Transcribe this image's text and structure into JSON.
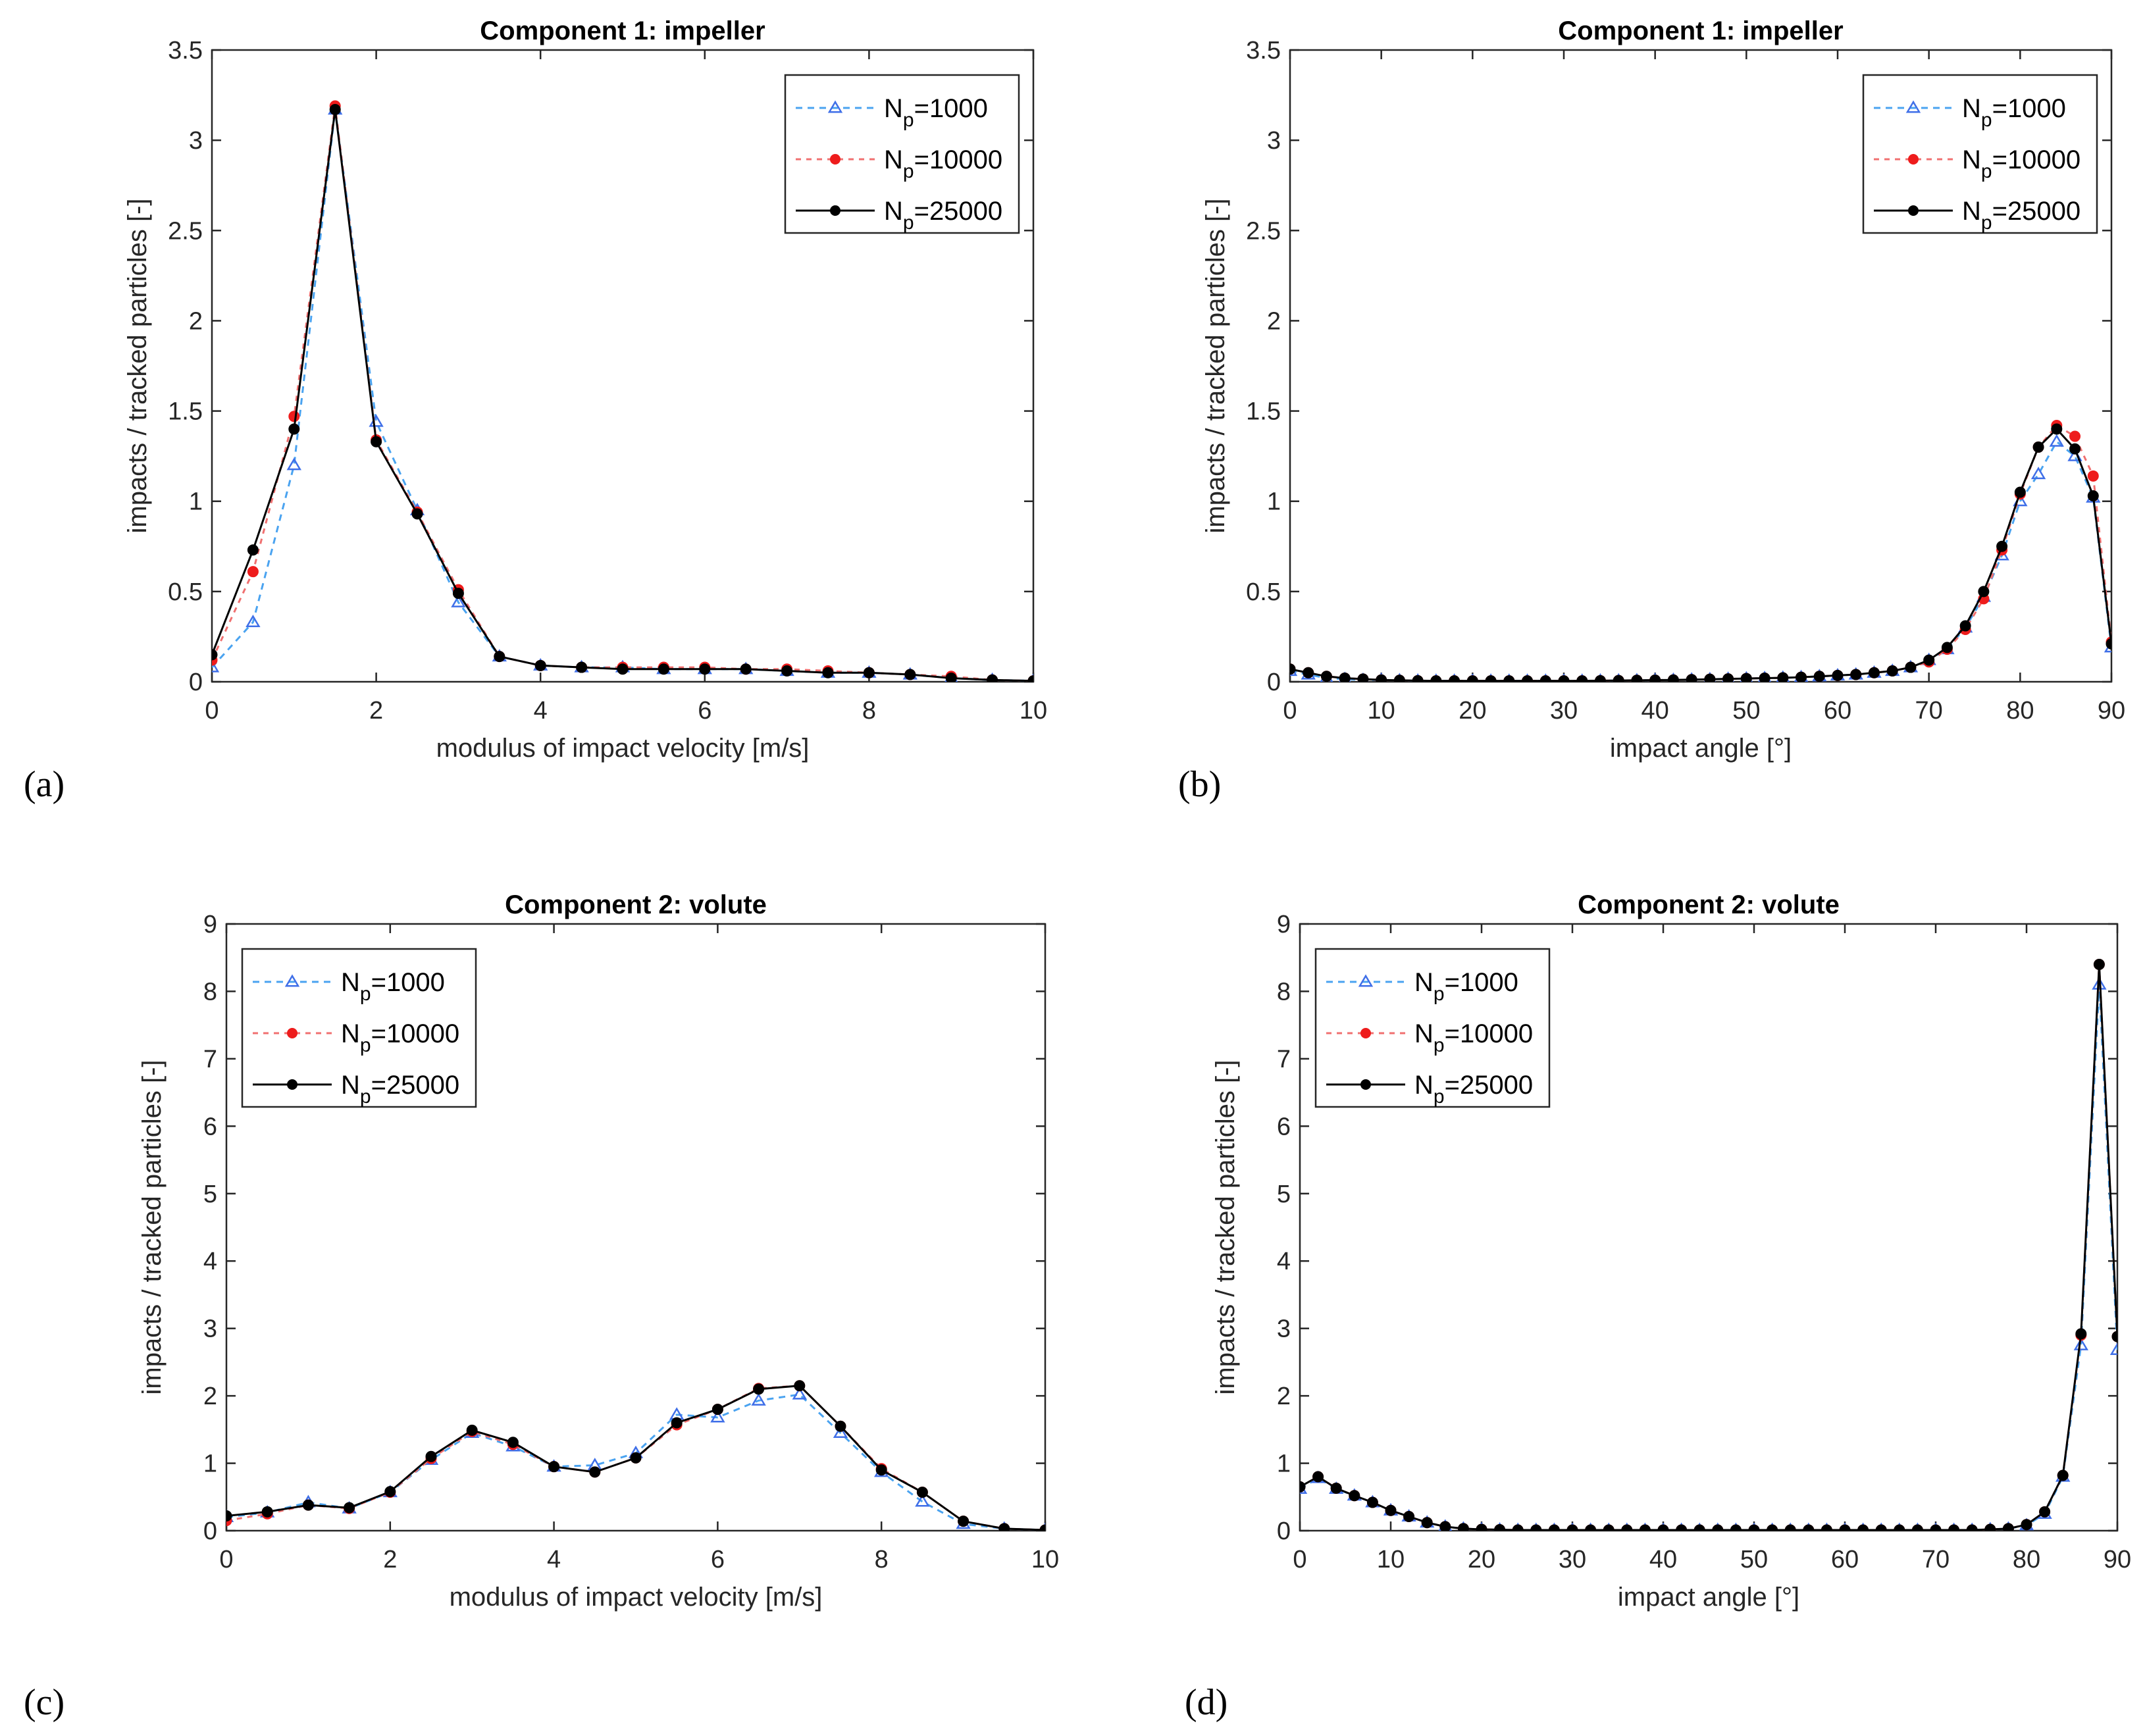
{
  "colors": {
    "np1000": "#3f6fe8",
    "np10000": "#ee1c1c",
    "np25000": "#000000",
    "np1000_line": "#4aa3f0",
    "np10000_line": "#f07070"
  },
  "legend": [
    {
      "n": "N",
      "sub": "p",
      "rest": "=1000"
    },
    {
      "n": "N",
      "sub": "p",
      "rest": "=10000"
    },
    {
      "n": "N",
      "sub": "p",
      "rest": "=25000"
    }
  ],
  "chart_data": [
    {
      "label": "(a)",
      "type": "line",
      "title": "Component 1: impeller",
      "xlabel": "modulus of impact velocity [m/s]",
      "ylabel": "impacts / tracked particles [-]",
      "xlim": [
        0,
        10
      ],
      "ylim": [
        0,
        3.5
      ],
      "xticks": [
        0,
        2,
        4,
        6,
        8,
        10
      ],
      "yticks": [
        0,
        0.5,
        1,
        1.5,
        2,
        2.5,
        3,
        3.5
      ],
      "legend_position": "top-right",
      "x": [
        0,
        0.5,
        1,
        1.5,
        2,
        2.5,
        3,
        3.5,
        4,
        4.5,
        5,
        5.5,
        6,
        6.5,
        7,
        7.5,
        8,
        8.5,
        9,
        9.5,
        10
      ],
      "series": [
        {
          "name": "Np=1000",
          "values": [
            0.08,
            0.33,
            1.2,
            3.17,
            1.44,
            0.95,
            0.44,
            0.14,
            0.09,
            0.08,
            0.08,
            0.07,
            0.07,
            0.07,
            0.06,
            0.05,
            0.05,
            0.04,
            0.02,
            0.01,
            0.005
          ]
        },
        {
          "name": "Np=10000",
          "values": [
            0.12,
            0.61,
            1.47,
            3.19,
            1.34,
            0.94,
            0.51,
            0.14,
            0.09,
            0.08,
            0.08,
            0.08,
            0.08,
            0.07,
            0.07,
            0.06,
            0.05,
            0.04,
            0.03,
            0.01,
            0.005
          ]
        },
        {
          "name": "Np=25000",
          "values": [
            0.15,
            0.73,
            1.4,
            3.17,
            1.33,
            0.93,
            0.49,
            0.14,
            0.09,
            0.08,
            0.07,
            0.07,
            0.07,
            0.07,
            0.06,
            0.05,
            0.05,
            0.04,
            0.02,
            0.01,
            0.005
          ]
        }
      ]
    },
    {
      "label": "(b)",
      "type": "line",
      "title": "Component 1: impeller",
      "xlabel": "impact angle [°]",
      "ylabel": "impacts / tracked particles [-]",
      "xlim": [
        0,
        90
      ],
      "ylim": [
        0,
        3.5
      ],
      "xticks": [
        0,
        10,
        20,
        30,
        40,
        50,
        60,
        70,
        80,
        90
      ],
      "yticks": [
        0,
        0.5,
        1,
        1.5,
        2,
        2.5,
        3,
        3.5
      ],
      "legend_position": "top-right",
      "x": [
        0,
        2,
        4,
        6,
        8,
        10,
        12,
        14,
        16,
        18,
        20,
        22,
        24,
        26,
        28,
        30,
        32,
        34,
        36,
        38,
        40,
        42,
        44,
        46,
        48,
        50,
        52,
        54,
        56,
        58,
        60,
        62,
        64,
        66,
        68,
        70,
        72,
        74,
        76,
        78,
        80,
        82,
        84,
        86,
        88,
        90
      ],
      "series": [
        {
          "name": "Np=1000",
          "values": [
            0.06,
            0.04,
            0.02,
            0.015,
            0.01,
            0.01,
            0.008,
            0.006,
            0.005,
            0.005,
            0.005,
            0.005,
            0.005,
            0.005,
            0.005,
            0.005,
            0.005,
            0.006,
            0.007,
            0.008,
            0.009,
            0.01,
            0.012,
            0.014,
            0.016,
            0.018,
            0.02,
            0.022,
            0.025,
            0.03,
            0.035,
            0.04,
            0.05,
            0.06,
            0.08,
            0.12,
            0.18,
            0.3,
            0.47,
            0.7,
            1.0,
            1.15,
            1.33,
            1.25,
            1.02,
            0.19
          ]
        },
        {
          "name": "Np=10000",
          "values": [
            0.07,
            0.05,
            0.03,
            0.02,
            0.015,
            0.01,
            0.008,
            0.006,
            0.005,
            0.005,
            0.005,
            0.005,
            0.005,
            0.005,
            0.005,
            0.005,
            0.005,
            0.006,
            0.007,
            0.008,
            0.009,
            0.01,
            0.012,
            0.014,
            0.016,
            0.018,
            0.02,
            0.022,
            0.025,
            0.03,
            0.035,
            0.04,
            0.05,
            0.06,
            0.08,
            0.11,
            0.18,
            0.29,
            0.46,
            0.73,
            1.04,
            1.3,
            1.42,
            1.36,
            1.14,
            0.22
          ]
        },
        {
          "name": "Np=25000",
          "values": [
            0.07,
            0.05,
            0.03,
            0.02,
            0.015,
            0.01,
            0.008,
            0.006,
            0.005,
            0.005,
            0.005,
            0.005,
            0.005,
            0.005,
            0.005,
            0.005,
            0.005,
            0.006,
            0.007,
            0.008,
            0.009,
            0.01,
            0.012,
            0.014,
            0.016,
            0.018,
            0.02,
            0.022,
            0.025,
            0.03,
            0.035,
            0.04,
            0.05,
            0.06,
            0.08,
            0.12,
            0.19,
            0.31,
            0.5,
            0.75,
            1.05,
            1.3,
            1.4,
            1.29,
            1.03,
            0.21
          ]
        }
      ]
    },
    {
      "label": "(c)",
      "type": "line",
      "title": "Component 2: volute",
      "xlabel": "modulus of impact velocity [m/s]",
      "ylabel": "impacts / tracked particles [-]",
      "xlim": [
        0,
        10
      ],
      "ylim": [
        0,
        9
      ],
      "xticks": [
        0,
        2,
        4,
        6,
        8,
        10
      ],
      "yticks": [
        0,
        1,
        2,
        3,
        4,
        5,
        6,
        7,
        8,
        9
      ],
      "legend_position": "top-left",
      "x": [
        0,
        0.5,
        1,
        1.5,
        2,
        2.5,
        3,
        3.5,
        4,
        4.5,
        5,
        5.5,
        6,
        6.5,
        7,
        7.5,
        8,
        8.5,
        9,
        9.5,
        10
      ],
      "series": [
        {
          "name": "Np=1000",
          "values": [
            0.2,
            0.27,
            0.42,
            0.33,
            0.57,
            1.05,
            1.45,
            1.25,
            0.95,
            0.97,
            1.15,
            1.72,
            1.68,
            1.93,
            2.02,
            1.45,
            0.87,
            0.43,
            0.1,
            0.03,
            0.01
          ]
        },
        {
          "name": "Np=10000",
          "values": [
            0.15,
            0.25,
            0.38,
            0.33,
            0.57,
            1.07,
            1.47,
            1.28,
            0.95,
            0.87,
            1.08,
            1.57,
            1.8,
            2.11,
            2.15,
            1.55,
            0.92,
            0.57,
            0.14,
            0.03,
            0.01
          ]
        },
        {
          "name": "Np=25000",
          "values": [
            0.22,
            0.28,
            0.38,
            0.34,
            0.58,
            1.1,
            1.49,
            1.31,
            0.95,
            0.87,
            1.08,
            1.6,
            1.8,
            2.1,
            2.15,
            1.55,
            0.9,
            0.57,
            0.14,
            0.03,
            0.01
          ]
        }
      ]
    },
    {
      "label": "(d)",
      "type": "line",
      "title": "Component 2: volute",
      "xlabel": "impact angle [°]",
      "ylabel": "impacts / tracked particles [-]",
      "xlim": [
        0,
        90
      ],
      "ylim": [
        0,
        9
      ],
      "xticks": [
        0,
        10,
        20,
        30,
        40,
        50,
        60,
        70,
        80,
        90
      ],
      "yticks": [
        0,
        1,
        2,
        3,
        4,
        5,
        6,
        7,
        8,
        9
      ],
      "legend_position": "top-left",
      "x": [
        0,
        2,
        4,
        6,
        8,
        10,
        12,
        14,
        16,
        18,
        20,
        22,
        24,
        26,
        28,
        30,
        32,
        34,
        36,
        38,
        40,
        42,
        44,
        46,
        48,
        50,
        52,
        54,
        56,
        58,
        60,
        62,
        64,
        66,
        68,
        70,
        72,
        74,
        76,
        78,
        80,
        82,
        84,
        86,
        88,
        90
      ],
      "series": [
        {
          "name": "Np=1000",
          "values": [
            0.62,
            0.78,
            0.62,
            0.52,
            0.42,
            0.3,
            0.21,
            0.12,
            0.06,
            0.03,
            0.02,
            0.015,
            0.01,
            0.01,
            0.01,
            0.01,
            0.01,
            0.01,
            0.01,
            0.01,
            0.01,
            0.01,
            0.01,
            0.01,
            0.01,
            0.01,
            0.01,
            0.01,
            0.01,
            0.01,
            0.01,
            0.01,
            0.01,
            0.01,
            0.01,
            0.01,
            0.01,
            0.01,
            0.02,
            0.03,
            0.08,
            0.25,
            0.8,
            2.75,
            8.1,
            2.68
          ]
        },
        {
          "name": "Np=10000",
          "values": [
            0.65,
            0.8,
            0.63,
            0.52,
            0.42,
            0.3,
            0.21,
            0.12,
            0.06,
            0.03,
            0.02,
            0.015,
            0.01,
            0.01,
            0.01,
            0.01,
            0.01,
            0.01,
            0.01,
            0.01,
            0.01,
            0.01,
            0.01,
            0.01,
            0.01,
            0.01,
            0.01,
            0.01,
            0.01,
            0.01,
            0.01,
            0.01,
            0.01,
            0.01,
            0.01,
            0.01,
            0.01,
            0.01,
            0.02,
            0.03,
            0.09,
            0.28,
            0.82,
            2.9,
            8.4,
            2.88
          ]
        },
        {
          "name": "Np=25000",
          "values": [
            0.65,
            0.8,
            0.63,
            0.52,
            0.42,
            0.3,
            0.21,
            0.12,
            0.06,
            0.03,
            0.02,
            0.015,
            0.01,
            0.01,
            0.01,
            0.01,
            0.01,
            0.01,
            0.01,
            0.01,
            0.01,
            0.01,
            0.01,
            0.01,
            0.01,
            0.01,
            0.01,
            0.01,
            0.01,
            0.01,
            0.01,
            0.01,
            0.01,
            0.01,
            0.01,
            0.01,
            0.01,
            0.01,
            0.02,
            0.03,
            0.09,
            0.28,
            0.82,
            2.92,
            8.4,
            2.88
          ]
        }
      ]
    }
  ]
}
